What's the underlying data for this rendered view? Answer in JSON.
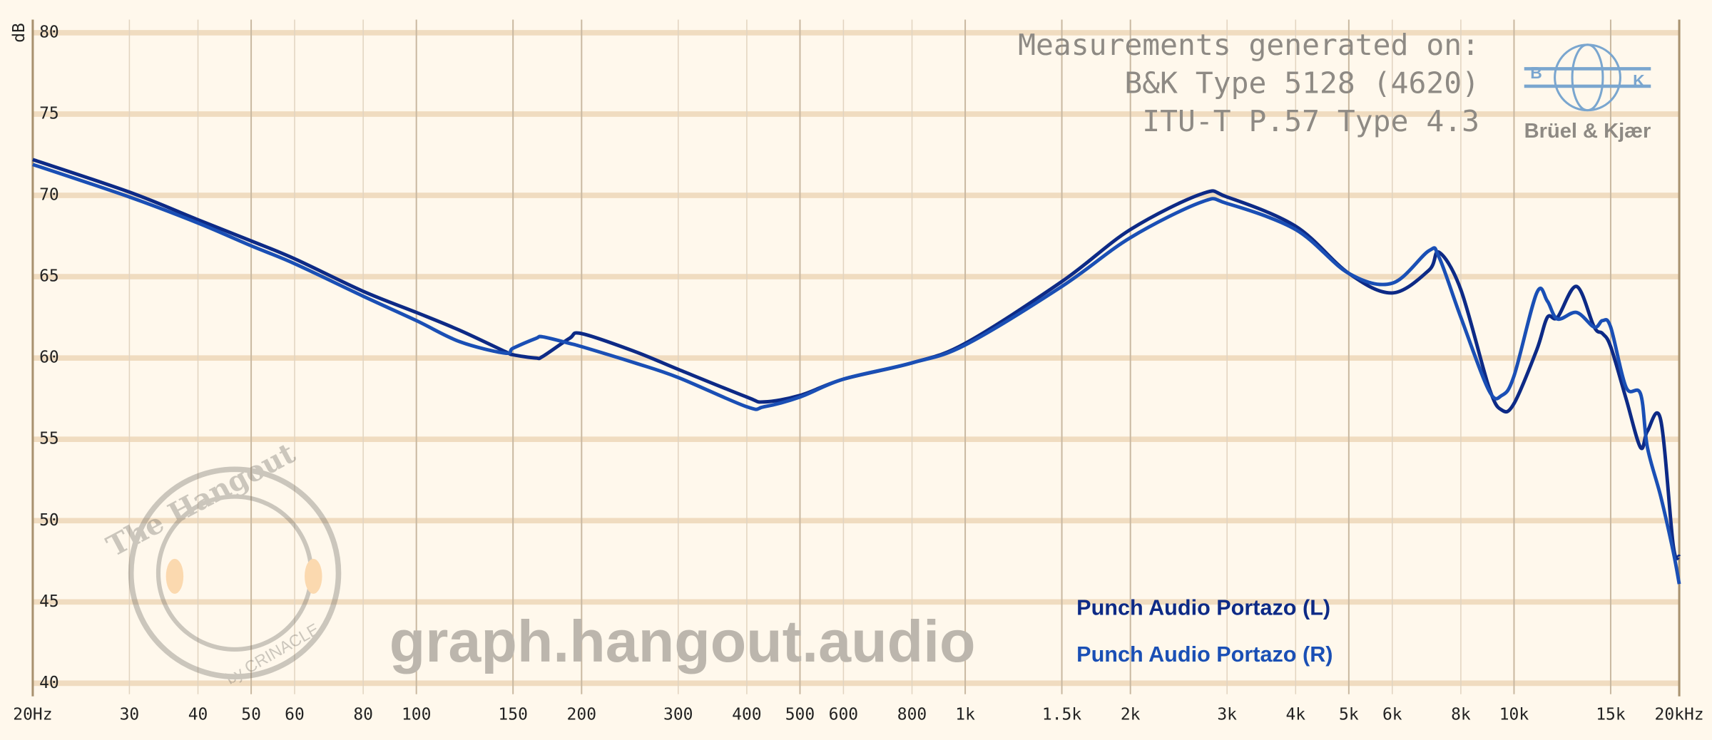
{
  "chart_data": {
    "type": "line",
    "y_label": "dB",
    "annotations": [
      "Measurements generated on:",
      "B&K Type 5128 (4620)",
      "ITU-T P.57 Type 4.3"
    ],
    "logo_text": "Brüel & Kjær",
    "logo_letters": [
      "B",
      "K"
    ],
    "watermark": "graph.hangout.audio",
    "watermark_badge": [
      "The Hangout",
      "by CRINACLE"
    ],
    "x": [
      20,
      30,
      40,
      50,
      60,
      80,
      100,
      120,
      145,
      150,
      165,
      170,
      190,
      200,
      250,
      300,
      400,
      430,
      500,
      600,
      800,
      1000,
      1500,
      2000,
      2700,
      3000,
      4000,
      5000,
      6000,
      7000,
      7300,
      8000,
      9000,
      9500,
      10000,
      11000,
      11500,
      12000,
      13000,
      14000,
      14500,
      15000,
      16000,
      17000,
      17500,
      18500,
      19500,
      20000
    ],
    "series": [
      {
        "name": "Punch Audio Portazo (L)",
        "color": "#0d2a86",
        "values": [
          72.2,
          70.2,
          68.5,
          67.2,
          66.1,
          64.1,
          62.8,
          61.7,
          60.4,
          60.2,
          60.0,
          60.1,
          61.2,
          61.5,
          60.4,
          59.3,
          57.6,
          57.3,
          57.7,
          58.7,
          59.7,
          60.9,
          64.7,
          67.9,
          70.1,
          69.9,
          68.1,
          65.2,
          64.0,
          65.4,
          66.5,
          64.2,
          58.2,
          56.8,
          57.2,
          60.5,
          62.5,
          62.5,
          64.4,
          61.9,
          61.5,
          60.7,
          57.5,
          54.5,
          55.5,
          56.2,
          48.5,
          47.8
        ]
      },
      {
        "name": "Punch Audio Portazo (R)",
        "color": "#1a4fb5",
        "values": [
          71.9,
          69.9,
          68.3,
          66.9,
          65.8,
          63.8,
          62.3,
          61.0,
          60.3,
          60.6,
          61.2,
          61.3,
          60.9,
          60.7,
          59.7,
          58.8,
          57.0,
          57.0,
          57.6,
          58.7,
          59.7,
          60.8,
          64.4,
          67.4,
          69.6,
          69.5,
          67.9,
          65.2,
          64.6,
          66.6,
          66.2,
          62.5,
          58.0,
          57.7,
          58.9,
          64.0,
          63.5,
          62.4,
          62.8,
          61.9,
          62.3,
          61.9,
          58.2,
          57.8,
          54.5,
          51.5,
          48.1,
          46.1
        ]
      }
    ],
    "log_x": true,
    "xlim": [
      20,
      20000
    ],
    "ylim": [
      40,
      80
    ],
    "xticks": [
      {
        "value": 20,
        "label": "20Hz"
      },
      30,
      40,
      50,
      60,
      80,
      100,
      150,
      200,
      300,
      400,
      500,
      600,
      800,
      {
        "value": 1000,
        "label": "1k"
      },
      {
        "value": 1500,
        "label": "1.5k"
      },
      {
        "value": 2000,
        "label": "2k"
      },
      {
        "value": 3000,
        "label": "3k"
      },
      {
        "value": 4000,
        "label": "4k"
      },
      {
        "value": 5000,
        "label": "5k"
      },
      {
        "value": 6000,
        "label": "6k"
      },
      {
        "value": 8000,
        "label": "8k"
      },
      {
        "value": 10000,
        "label": "10k"
      },
      {
        "value": 15000,
        "label": "15k"
      },
      {
        "value": 20000,
        "label": "20kHz"
      }
    ],
    "yticks": [
      40,
      45,
      50,
      55,
      60,
      65,
      70,
      75,
      80
    ],
    "grid": true,
    "legend": "lower right"
  }
}
